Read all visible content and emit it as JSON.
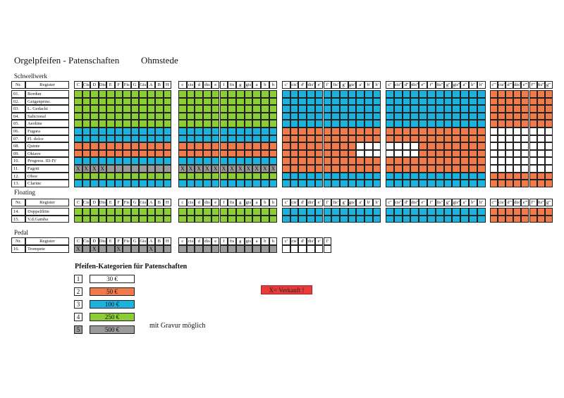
{
  "title": {
    "main": "Orgelpfeifen - Patenschaften",
    "place": "Ohmstede"
  },
  "colors": {
    "1": "#ffffff",
    "2": "#f07a4a",
    "3": "#1bb3dd",
    "4": "#8ccc34",
    "5": "#9a9a9a"
  },
  "sections": {
    "schwellwerk": "Schwellwerk",
    "floating": "Floating",
    "pedal": "Pedal"
  },
  "header_nr": "Nr.",
  "header_register": "Register",
  "headers": {
    "g1": [
      "C",
      "Cis",
      "D",
      "Dis",
      "E",
      "F",
      "Fis",
      "G",
      "Gis",
      "A",
      "B",
      "H"
    ],
    "g2": [
      "c",
      "cis",
      "d",
      "dis",
      "e",
      "f",
      "fis",
      "g",
      "gis",
      "a",
      "b",
      "h"
    ],
    "g3": [
      "c'",
      "cis'",
      "d'",
      "dis'",
      "e'",
      "f'",
      "fis'",
      "g'",
      "gis'",
      "a'",
      "b'",
      "h'"
    ],
    "g4": [
      "c''",
      "cis''",
      "d''",
      "dis''",
      "e''",
      "f''",
      "fis''",
      "g''",
      "gis''",
      "a''",
      "b''",
      "h''"
    ],
    "g5": [
      "c'''",
      "cis'''",
      "d'''",
      "dis'''",
      "e'''",
      "f'''",
      "fis'''",
      "g'''"
    ]
  },
  "schwellwerk_rows": [
    {
      "nr": "01.",
      "name": "Bordun",
      "pattern": "4444444444444444444444443333333333333333333333332222222222222222"
    },
    {
      "nr": "02.",
      "name": "Geigenprinc.",
      "pattern": "4444444444444444444444443333333333333333333333332222222222222222"
    },
    {
      "nr": "03.",
      "name": "L. Gedackt",
      "pattern": "4444444444444444444444443333333333333333333333332222222222222222"
    },
    {
      "nr": "04.",
      "name": "Salicional",
      "pattern": "4444444444444444444444443333333333333333333333332222222222222222"
    },
    {
      "nr": "05.",
      "name": "Aeoline",
      "pattern": "4444444444444444444444443333333333333333333333332222222222222222"
    },
    {
      "nr": "06.",
      "name": "Fugara",
      "pattern": "3333333333333333333333332222222222222222222222221111111111111111"
    },
    {
      "nr": "07.",
      "name": "Fl. dolce",
      "pattern": "3333333333333333333333332222222222222222222222221111111111111111"
    },
    {
      "nr": "08.",
      "name": "Quinte",
      "pattern": "2222222222222222222222222222222221111111222222221111111111111111"
    },
    {
      "nr": "09.",
      "name": "Oktave",
      "pattern": "2222222222222222222222222222222221111111222222221111111111111111"
    },
    {
      "nr": "10.",
      "name": "Progress. III-IV",
      "pattern": "3333333333333333333333332222222222222222222222221111111111111111"
    },
    {
      "nr": "11.",
      "name": "Fagott",
      "pattern": "5555555555555555555555552222222222222222222222221111111111111111",
      "x": [
        0,
        1,
        2,
        3,
        12,
        13,
        14,
        15,
        16,
        17,
        18,
        19,
        20,
        21,
        22,
        23
      ]
    },
    {
      "nr": "12.",
      "name": "Oboe",
      "pattern": "4444444444444444444444443333333333333333333333332222222222222222"
    },
    {
      "nr": "13.",
      "name": "Clarine",
      "pattern": "3333333333333333333333333333333333333333333333332222222222222222"
    }
  ],
  "floating_rows": [
    {
      "nr": "14.",
      "name": "Doppelflöte",
      "pattern": "4444444444444444444444443333333333333333333333332222222222222222"
    },
    {
      "nr": "15.",
      "name": "V.d.Gamba",
      "pattern": "4444444444444444444444443333333333333333333333332222222222222222"
    }
  ],
  "pedal_row": {
    "nr": "16.",
    "name": "Trompete",
    "pattern": "555555555555555555555555111111",
    "x": [
      0,
      2,
      5,
      9
    ]
  },
  "legend": {
    "title": "Pfeifen-Kategorien für Patenschaften",
    "items": [
      {
        "n": "1",
        "value": "30 €",
        "color": "#ffffff"
      },
      {
        "n": "2",
        "value": "50 €",
        "color": "#f07a4a"
      },
      {
        "n": "3",
        "value": "100 €",
        "color": "#1bb3dd"
      },
      {
        "n": "4",
        "value": "250 €",
        "color": "#8ccc34"
      },
      {
        "n": "5",
        "value": "500 €",
        "color": "#9a9a9a"
      }
    ],
    "note": "mit Gravur möglich",
    "sold": "X= Verkauft !"
  }
}
